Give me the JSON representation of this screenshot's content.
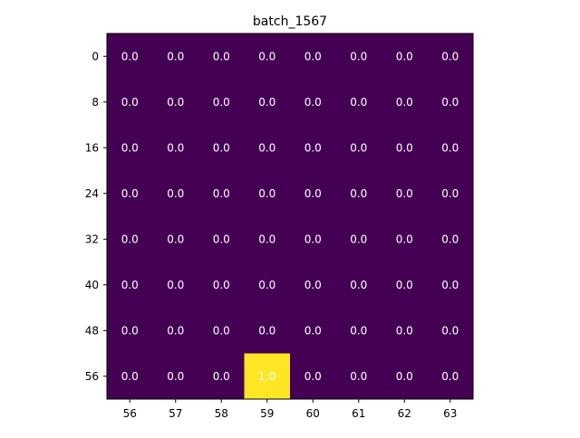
{
  "chart_data": {
    "type": "heatmap",
    "title": "batch_1567",
    "xlabel": "",
    "ylabel": "",
    "x_categories": [
      "56",
      "57",
      "58",
      "59",
      "60",
      "61",
      "62",
      "63"
    ],
    "y_categories": [
      "0",
      "8",
      "16",
      "24",
      "32",
      "40",
      "48",
      "56"
    ],
    "values": [
      [
        0.0,
        0.0,
        0.0,
        0.0,
        0.0,
        0.0,
        0.0,
        0.0
      ],
      [
        0.0,
        0.0,
        0.0,
        0.0,
        0.0,
        0.0,
        0.0,
        0.0
      ],
      [
        0.0,
        0.0,
        0.0,
        0.0,
        0.0,
        0.0,
        0.0,
        0.0
      ],
      [
        0.0,
        0.0,
        0.0,
        0.0,
        0.0,
        0.0,
        0.0,
        0.0
      ],
      [
        0.0,
        0.0,
        0.0,
        0.0,
        0.0,
        0.0,
        0.0,
        0.0
      ],
      [
        0.0,
        0.0,
        0.0,
        0.0,
        0.0,
        0.0,
        0.0,
        0.0
      ],
      [
        0.0,
        0.0,
        0.0,
        0.0,
        0.0,
        0.0,
        0.0,
        0.0
      ],
      [
        0.0,
        0.0,
        0.0,
        1.0,
        0.0,
        0.0,
        0.0,
        0.0
      ]
    ],
    "value_range": [
      0.0,
      1.0
    ],
    "colormap": "viridis",
    "colors": {
      "low": "#440154",
      "high": "#fde725",
      "label": "#ffffff"
    },
    "grid": false,
    "legend": "none"
  }
}
